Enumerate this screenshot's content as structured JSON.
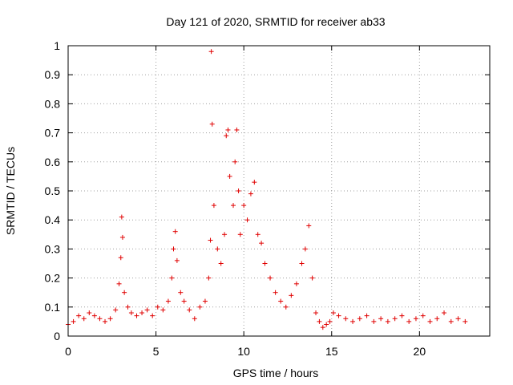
{
  "chart_data": {
    "type": "scatter",
    "title": "Day 121 of 2020, SRMTID for receiver ab33",
    "xlabel": "GPS time / hours",
    "ylabel": "SRMTID / TECUs",
    "xlim": [
      0,
      24
    ],
    "ylim": [
      0,
      1
    ],
    "xticks": [
      0,
      5,
      10,
      15,
      20
    ],
    "xtick_labels": [
      "0",
      "5",
      "10",
      "15",
      "20"
    ],
    "yticks": [
      0,
      0.1,
      0.2,
      0.3,
      0.4,
      0.5,
      0.6,
      0.7,
      0.8,
      0.9,
      1
    ],
    "ytick_labels": [
      "0",
      "0.1",
      "0.2",
      "0.3",
      "0.4",
      "0.5",
      "0.6",
      "0.7",
      "0.8",
      "0.9",
      "1"
    ],
    "grid": true,
    "marker": "+",
    "color": "#e00000",
    "series": [
      {
        "name": "SRMTID",
        "x": [
          0.0,
          0.3,
          0.6,
          0.9,
          1.2,
          1.5,
          1.8,
          2.1,
          2.4,
          2.7,
          2.9,
          3.0,
          3.05,
          3.1,
          3.2,
          3.4,
          3.6,
          3.9,
          4.2,
          4.5,
          4.8,
          5.1,
          5.4,
          5.7,
          5.9,
          6.0,
          6.1,
          6.2,
          6.4,
          6.6,
          6.9,
          7.2,
          7.5,
          7.8,
          8.0,
          8.1,
          8.15,
          8.2,
          8.3,
          8.5,
          8.7,
          8.9,
          9.0,
          9.1,
          9.2,
          9.4,
          9.5,
          9.6,
          9.7,
          9.8,
          10.0,
          10.2,
          10.4,
          10.6,
          10.8,
          11.0,
          11.2,
          11.5,
          11.8,
          12.1,
          12.4,
          12.7,
          13.0,
          13.3,
          13.5,
          13.7,
          13.9,
          14.1,
          14.3,
          14.5,
          14.7,
          14.9,
          15.1,
          15.4,
          15.8,
          16.2,
          16.6,
          17.0,
          17.4,
          17.8,
          18.2,
          18.6,
          19.0,
          19.4,
          19.8,
          20.2,
          20.6,
          21.0,
          21.4,
          21.8,
          22.2,
          22.6
        ],
        "y": [
          0.04,
          0.05,
          0.07,
          0.06,
          0.08,
          0.07,
          0.06,
          0.05,
          0.06,
          0.09,
          0.18,
          0.27,
          0.41,
          0.34,
          0.15,
          0.1,
          0.08,
          0.07,
          0.08,
          0.09,
          0.07,
          0.1,
          0.09,
          0.12,
          0.2,
          0.3,
          0.36,
          0.26,
          0.15,
          0.12,
          0.09,
          0.06,
          0.1,
          0.12,
          0.2,
          0.33,
          0.98,
          0.73,
          0.45,
          0.3,
          0.25,
          0.35,
          0.69,
          0.71,
          0.55,
          0.45,
          0.6,
          0.71,
          0.5,
          0.35,
          0.45,
          0.4,
          0.49,
          0.53,
          0.35,
          0.32,
          0.25,
          0.2,
          0.15,
          0.12,
          0.1,
          0.14,
          0.18,
          0.25,
          0.3,
          0.38,
          0.2,
          0.08,
          0.05,
          0.03,
          0.04,
          0.05,
          0.08,
          0.07,
          0.06,
          0.05,
          0.06,
          0.07,
          0.05,
          0.06,
          0.05,
          0.06,
          0.07,
          0.05,
          0.06,
          0.07,
          0.05,
          0.06,
          0.08,
          0.05,
          0.06,
          0.05
        ]
      }
    ]
  }
}
